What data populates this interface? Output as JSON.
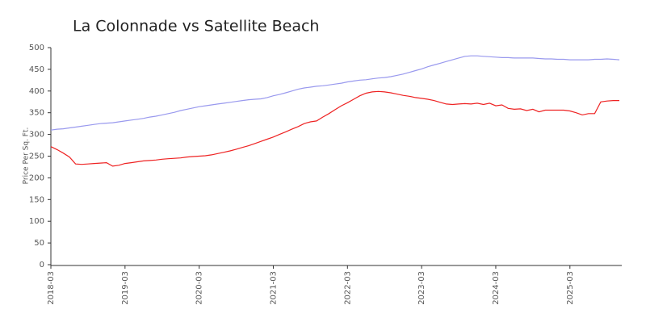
{
  "chart_data": {
    "type": "line",
    "title": "La Colonnade vs Satellite Beach",
    "y_label": "Price Per Sq. Ft.",
    "x": [
      "2018-03",
      "2018-04",
      "2018-05",
      "2018-06",
      "2018-07",
      "2018-08",
      "2018-09",
      "2018-10",
      "2018-11",
      "2018-12",
      "2019-01",
      "2019-02",
      "2019-03",
      "2019-04",
      "2019-05",
      "2019-06",
      "2019-07",
      "2019-08",
      "2019-09",
      "2019-10",
      "2019-11",
      "2019-12",
      "2020-01",
      "2020-02",
      "2020-03",
      "2020-04",
      "2020-05",
      "2020-06",
      "2020-07",
      "2020-08",
      "2020-09",
      "2020-10",
      "2020-11",
      "2020-12",
      "2021-01",
      "2021-02",
      "2021-03",
      "2021-04",
      "2021-05",
      "2021-06",
      "2021-07",
      "2021-08",
      "2021-09",
      "2021-10",
      "2021-11",
      "2021-12",
      "2022-01",
      "2022-02",
      "2022-03",
      "2022-04",
      "2022-05",
      "2022-06",
      "2022-07",
      "2022-08",
      "2022-09",
      "2022-10",
      "2022-11",
      "2022-12",
      "2023-01",
      "2023-02",
      "2023-03",
      "2023-04",
      "2023-05",
      "2023-06",
      "2023-07",
      "2023-08",
      "2023-09",
      "2023-10",
      "2023-11",
      "2023-12",
      "2024-01",
      "2024-02",
      "2024-03",
      "2024-04",
      "2024-05",
      "2024-06",
      "2024-07",
      "2024-08",
      "2024-09",
      "2024-10",
      "2024-11",
      "2024-12",
      "2025-01",
      "2025-02",
      "2025-03",
      "2025-04",
      "2025-05",
      "2025-06",
      "2025-07",
      "2025-08",
      "2025-09",
      "2025-10",
      "2025-11"
    ],
    "series": [
      {
        "color": "#9999ee",
        "values": [
          310,
          312,
          313,
          315,
          317,
          319,
          321,
          323,
          325,
          326,
          327,
          329,
          331,
          333,
          335,
          337,
          340,
          342,
          345,
          348,
          351,
          355,
          358,
          361,
          364,
          366,
          368,
          370,
          372,
          374,
          376,
          378,
          380,
          381,
          382,
          385,
          389,
          392,
          396,
          400,
          404,
          407,
          409,
          411,
          412,
          414,
          416,
          418,
          421,
          423,
          425,
          426,
          428,
          430,
          431,
          433,
          436,
          439,
          443,
          447,
          451,
          456,
          460,
          464,
          468,
          472,
          476,
          480,
          481,
          481,
          480,
          479,
          478,
          477,
          477,
          476,
          476,
          476,
          476,
          475,
          474,
          474,
          473,
          473,
          472,
          472,
          472,
          472,
          473,
          473,
          474,
          473,
          472
        ]
      },
      {
        "color": "#ee2222",
        "values": [
          272,
          265,
          257,
          248,
          232,
          231,
          232,
          233,
          234,
          235,
          227,
          229,
          233,
          235,
          237,
          239,
          240,
          241,
          243,
          244,
          245,
          246,
          248,
          249,
          250,
          251,
          253,
          256,
          259,
          262,
          266,
          270,
          274,
          279,
          284,
          289,
          294,
          300,
          306,
          312,
          318,
          325,
          329,
          331,
          340,
          348,
          357,
          366,
          373,
          381,
          389,
          395,
          398,
          399,
          398,
          396,
          393,
          390,
          388,
          385,
          383,
          381,
          378,
          374,
          370,
          369,
          370,
          371,
          370,
          372,
          369,
          372,
          366,
          368,
          360,
          358,
          359,
          355,
          358,
          352,
          356,
          356,
          356,
          356,
          354,
          350,
          345,
          348,
          348,
          375,
          377,
          378,
          378
        ]
      }
    ],
    "ylim": [
      0,
      500
    ],
    "yticks": [
      0,
      50,
      100,
      150,
      200,
      250,
      300,
      350,
      400,
      450,
      500
    ]
  }
}
